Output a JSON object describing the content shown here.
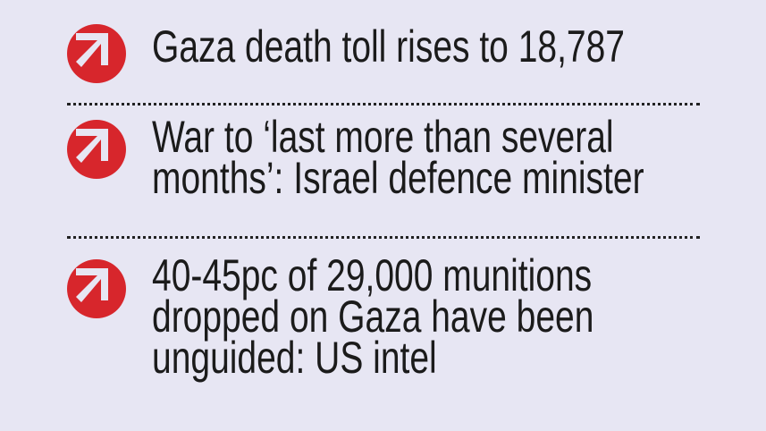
{
  "accent_color": "#d7262c",
  "headlines": [
    {
      "icon": "arrow-up-left-circle-icon",
      "lines": [
        "Gaza death toll rises to 18,787"
      ]
    },
    {
      "icon": "arrow-up-left-circle-icon",
      "lines": [
        "War to ‘last more than several",
        "months’: Israel defence minister"
      ]
    },
    {
      "icon": "arrow-up-left-circle-icon",
      "lines": [
        "40-45pc of 29,000 munitions",
        "dropped on Gaza have been",
        "unguided: US intel"
      ]
    }
  ]
}
